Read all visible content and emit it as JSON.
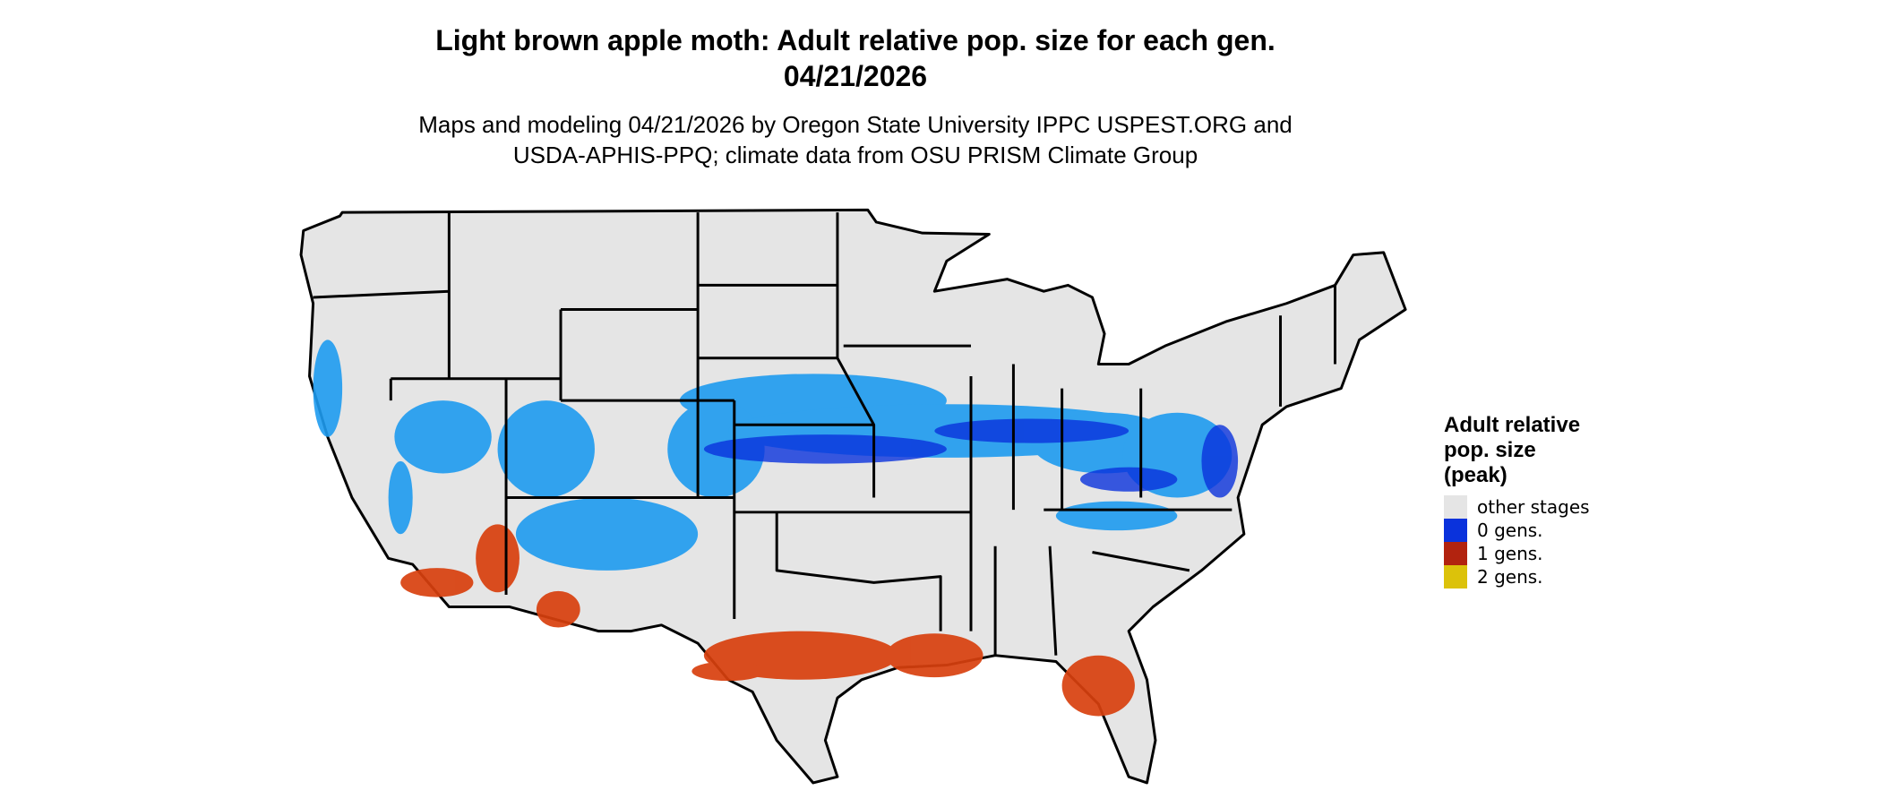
{
  "title": [
    "Light brown apple moth: Adult relative pop. size for each gen.",
    "04/21/2026"
  ],
  "subtitle": [
    "Maps and modeling 04/21/2026 by Oregon State University IPPC USPEST.ORG and",
    "USDA-APHIS-PPQ; climate data from OSU PRISM Climate Group"
  ],
  "legend": {
    "title": [
      "Adult relative",
      "pop. size",
      "(peak)"
    ],
    "items": [
      {
        "label": "other stages",
        "color": "#e5e5e5"
      },
      {
        "label": "0 gens.",
        "color": "#0a32dc"
      },
      {
        "label": "1 gens.",
        "color": "#b2230f"
      },
      {
        "label": "2 gens.",
        "color": "#dcc20a"
      }
    ]
  }
}
